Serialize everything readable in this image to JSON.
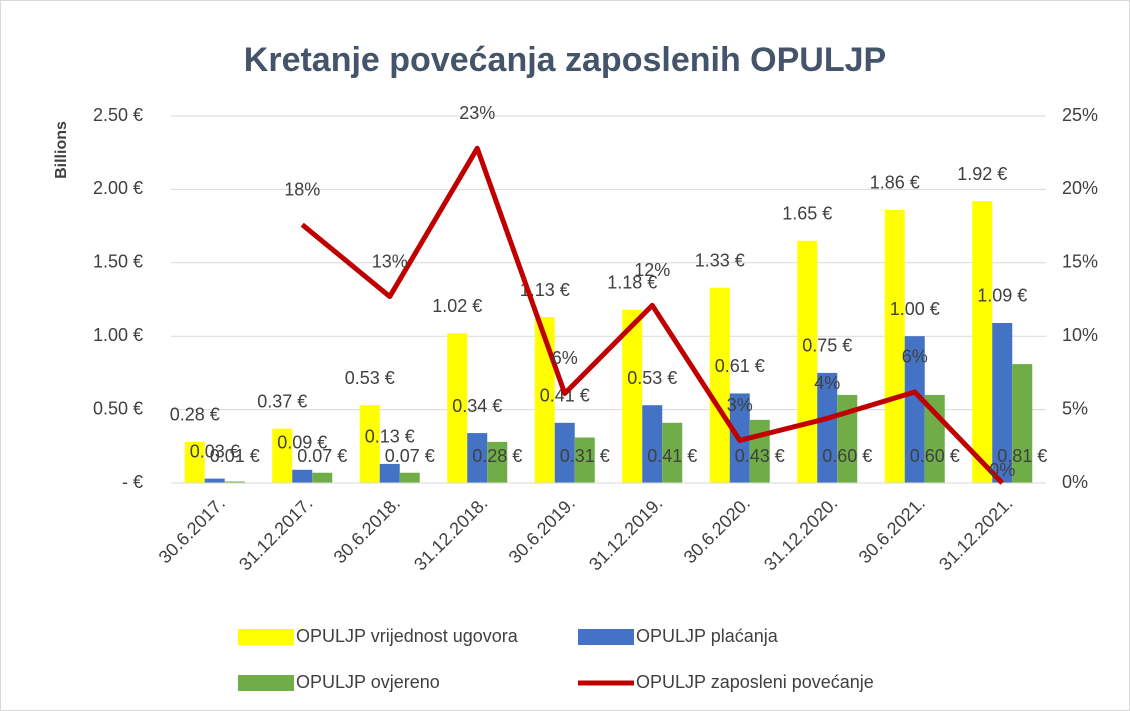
{
  "chart_data": {
    "type": "bar",
    "title": "Kretanje povećanja zaposlenih  OPULJP",
    "y_axis_label": "Billions",
    "categories": [
      "30.6.2017.",
      "31.12.2017.",
      "30.6.2018.",
      "31.12.2018.",
      "30.6.2019.",
      "31.12.2019.",
      "30.6.2020.",
      "31.12.2020.",
      "30.6.2021.",
      "31.12.2021."
    ],
    "series": [
      {
        "name": "OPULJP vrijednost ugovora",
        "color": "#ffff00",
        "type": "bar",
        "values": [
          0.28,
          0.37,
          0.53,
          1.02,
          1.13,
          1.18,
          1.33,
          1.65,
          1.86,
          1.92
        ],
        "value_labels": [
          "0.28 €",
          "0.37 €",
          "0.53 €",
          "1.02 €",
          "1.13 €",
          "1.18 €",
          "1.33 €",
          "1.65 €",
          "1.86 €",
          "1.92 €"
        ]
      },
      {
        "name": "OPULJP plaćanja",
        "color": "#4472c4",
        "type": "bar",
        "values": [
          0.03,
          0.09,
          0.13,
          0.34,
          0.41,
          0.53,
          0.61,
          0.75,
          1.0,
          1.09
        ],
        "value_labels": [
          "0.03 €",
          "0.09 €",
          "0.13 €",
          "0.34 €",
          "0.41 €",
          "0.53 €",
          "0.61 €",
          "0.75 €",
          "1.00 €",
          "1.09 €"
        ]
      },
      {
        "name": "OPULJP ovjereno",
        "color": "#70ad47",
        "type": "bar",
        "values": [
          0.01,
          0.07,
          0.07,
          0.28,
          0.31,
          0.41,
          0.43,
          0.6,
          0.6,
          0.81
        ],
        "value_labels": [
          "0.01 €",
          "0.07 €",
          "0.07 €",
          "0.28 €",
          "0.31 €",
          "0.41 €",
          "0.43 €",
          "0.60 €",
          "0.60 €",
          "0.81 €"
        ]
      },
      {
        "name": "OPULJP zaposleni povećanje",
        "color": "#c00000",
        "type": "line",
        "axis": "y2",
        "values": [
          null,
          17.6,
          12.7,
          22.8,
          6.1,
          12.1,
          2.9,
          4.4,
          6.2,
          0
        ],
        "value_labels": [
          null,
          "18%",
          "13%",
          "23%",
          "6%",
          "12%",
          "3%",
          "4%",
          "6%",
          "0%"
        ]
      }
    ],
    "ylim": [
      0,
      2.5
    ],
    "yticks": [
      {
        "value": 0,
        "label": "-  €"
      },
      {
        "value": 0.5,
        "label": "0.50 €"
      },
      {
        "value": 1,
        "label": "1.00 €"
      },
      {
        "value": 1.5,
        "label": "1.50 €"
      },
      {
        "value": 2,
        "label": "2.00 €"
      },
      {
        "value": 2.5,
        "label": "2.50 €"
      }
    ],
    "y2lim": [
      0,
      25
    ],
    "y2ticks": [
      {
        "value": 0,
        "label": "0%"
      },
      {
        "value": 5,
        "label": "5%"
      },
      {
        "value": 10,
        "label": "10%"
      },
      {
        "value": 15,
        "label": "15%"
      },
      {
        "value": 20,
        "label": "20%"
      },
      {
        "value": 25,
        "label": "25%"
      }
    ],
    "grid": true,
    "legend": "bottom"
  }
}
